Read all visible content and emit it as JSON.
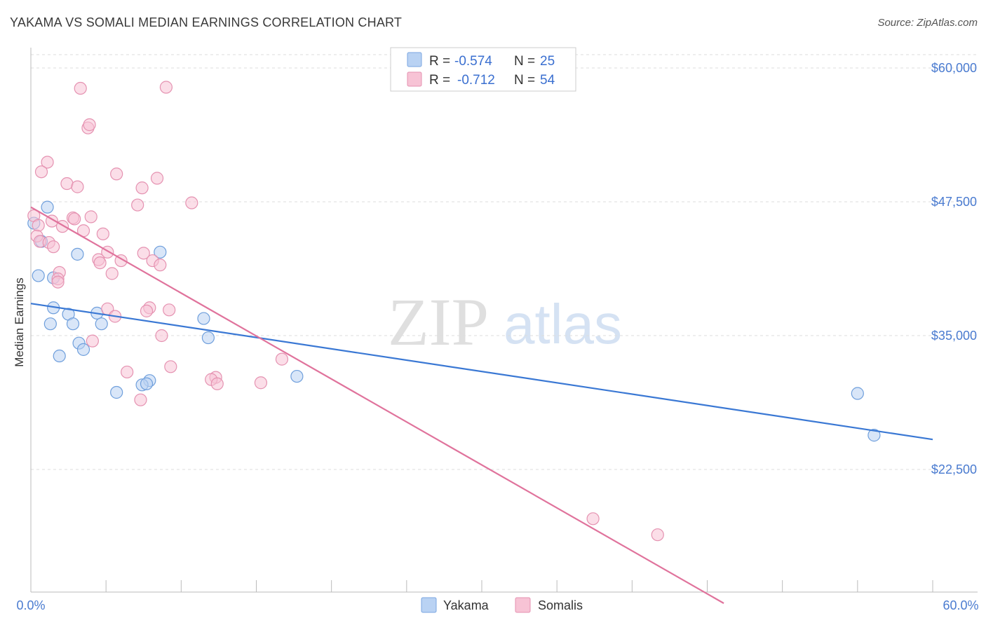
{
  "header": {
    "title": "YAKAMA VS SOMALI MEDIAN EARNINGS CORRELATION CHART",
    "source": "Source: ZipAtlas.com"
  },
  "watermark": {
    "zip": "ZIP",
    "atlas": "atlas"
  },
  "legend": {
    "yakama": {
      "r_label": "R =",
      "r_value": "-0.574",
      "n_label": "N =",
      "n_value": "25"
    },
    "somalis": {
      "r_label": "R =",
      "r_value": "-0.712",
      "n_label": "N =",
      "n_value": "54"
    }
  },
  "chart_data": {
    "type": "scatter",
    "title": "YAKAMA VS SOMALI MEDIAN EARNINGS CORRELATION CHART",
    "xlabel": "",
    "ylabel": "Median Earnings",
    "xlim": [
      0,
      60
    ],
    "ylim": [
      10000,
      61500
    ],
    "x_tick_labels": {
      "min": "0.0%",
      "max": "60.0%"
    },
    "y_ticks": [
      {
        "value": 22500,
        "label": "$22,500"
      },
      {
        "value": 35000,
        "label": "$35,000"
      },
      {
        "value": 47500,
        "label": "$47,500"
      },
      {
        "value": 60000,
        "label": "$60,000"
      }
    ],
    "colors": {
      "yakama": "#3a78d4",
      "somalis": "#e0739c",
      "yakama_fill": "#b9d2f3",
      "somalis_fill": "#f7c3d5"
    },
    "series": [
      {
        "name": "Yakama",
        "points": [
          [
            0.2,
            45.5
          ],
          [
            1.1,
            47.0
          ],
          [
            0.7,
            43.8
          ],
          [
            0.5,
            40.6
          ],
          [
            3.1,
            42.6
          ],
          [
            8.6,
            42.8
          ],
          [
            1.5,
            40.4
          ],
          [
            1.5,
            37.6
          ],
          [
            2.5,
            37.0
          ],
          [
            4.4,
            37.1
          ],
          [
            1.3,
            36.1
          ],
          [
            2.8,
            36.1
          ],
          [
            4.7,
            36.1
          ],
          [
            11.5,
            36.6
          ],
          [
            3.2,
            34.3
          ],
          [
            3.5,
            33.7
          ],
          [
            11.8,
            34.8
          ],
          [
            1.9,
            33.1
          ],
          [
            17.7,
            31.2
          ],
          [
            7.9,
            30.8
          ],
          [
            7.4,
            30.4
          ],
          [
            7.7,
            30.5
          ],
          [
            5.7,
            29.7
          ],
          [
            55.0,
            29.6
          ],
          [
            56.1,
            25.7
          ]
        ],
        "trend": {
          "x": [
            0,
            60
          ],
          "y": [
            38.0,
            25.3
          ]
        }
      },
      {
        "name": "Somalis",
        "points": [
          [
            3.3,
            58.1
          ],
          [
            9.0,
            58.2
          ],
          [
            3.8,
            54.4
          ],
          [
            3.9,
            54.7
          ],
          [
            1.1,
            51.2
          ],
          [
            0.7,
            50.3
          ],
          [
            5.7,
            50.1
          ],
          [
            8.4,
            49.7
          ],
          [
            2.4,
            49.2
          ],
          [
            3.1,
            48.9
          ],
          [
            7.4,
            48.8
          ],
          [
            10.7,
            47.4
          ],
          [
            7.1,
            47.2
          ],
          [
            0.2,
            46.2
          ],
          [
            0.5,
            45.3
          ],
          [
            2.8,
            46.0
          ],
          [
            4.0,
            46.1
          ],
          [
            2.9,
            45.9
          ],
          [
            1.4,
            45.7
          ],
          [
            2.1,
            45.2
          ],
          [
            3.5,
            44.8
          ],
          [
            4.8,
            44.5
          ],
          [
            0.4,
            44.3
          ],
          [
            0.6,
            43.8
          ],
          [
            1.2,
            43.7
          ],
          [
            1.5,
            43.3
          ],
          [
            7.5,
            42.7
          ],
          [
            5.1,
            42.8
          ],
          [
            4.5,
            42.1
          ],
          [
            4.6,
            41.8
          ],
          [
            6.0,
            42.0
          ],
          [
            8.1,
            42.0
          ],
          [
            8.6,
            41.6
          ],
          [
            1.9,
            40.9
          ],
          [
            5.4,
            40.8
          ],
          [
            1.8,
            40.3
          ],
          [
            1.8,
            40.0
          ],
          [
            5.1,
            37.5
          ],
          [
            7.9,
            37.6
          ],
          [
            7.7,
            37.3
          ],
          [
            9.2,
            37.4
          ],
          [
            5.6,
            36.8
          ],
          [
            8.7,
            35.0
          ],
          [
            4.1,
            34.5
          ],
          [
            16.7,
            32.8
          ],
          [
            9.3,
            32.1
          ],
          [
            6.4,
            31.6
          ],
          [
            12.3,
            31.1
          ],
          [
            12.0,
            30.9
          ],
          [
            12.4,
            30.5
          ],
          [
            15.3,
            30.6
          ],
          [
            7.3,
            29.0
          ],
          [
            37.4,
            17.9
          ],
          [
            41.7,
            16.4
          ]
        ],
        "trend": {
          "x": [
            0,
            46.1
          ],
          "y": [
            47.0,
            10.0
          ]
        }
      }
    ],
    "units_note": "y values in thousands of dollars; x values in percent"
  },
  "bottom_legend": {
    "yakama": "Yakama",
    "somalis": "Somalis"
  }
}
